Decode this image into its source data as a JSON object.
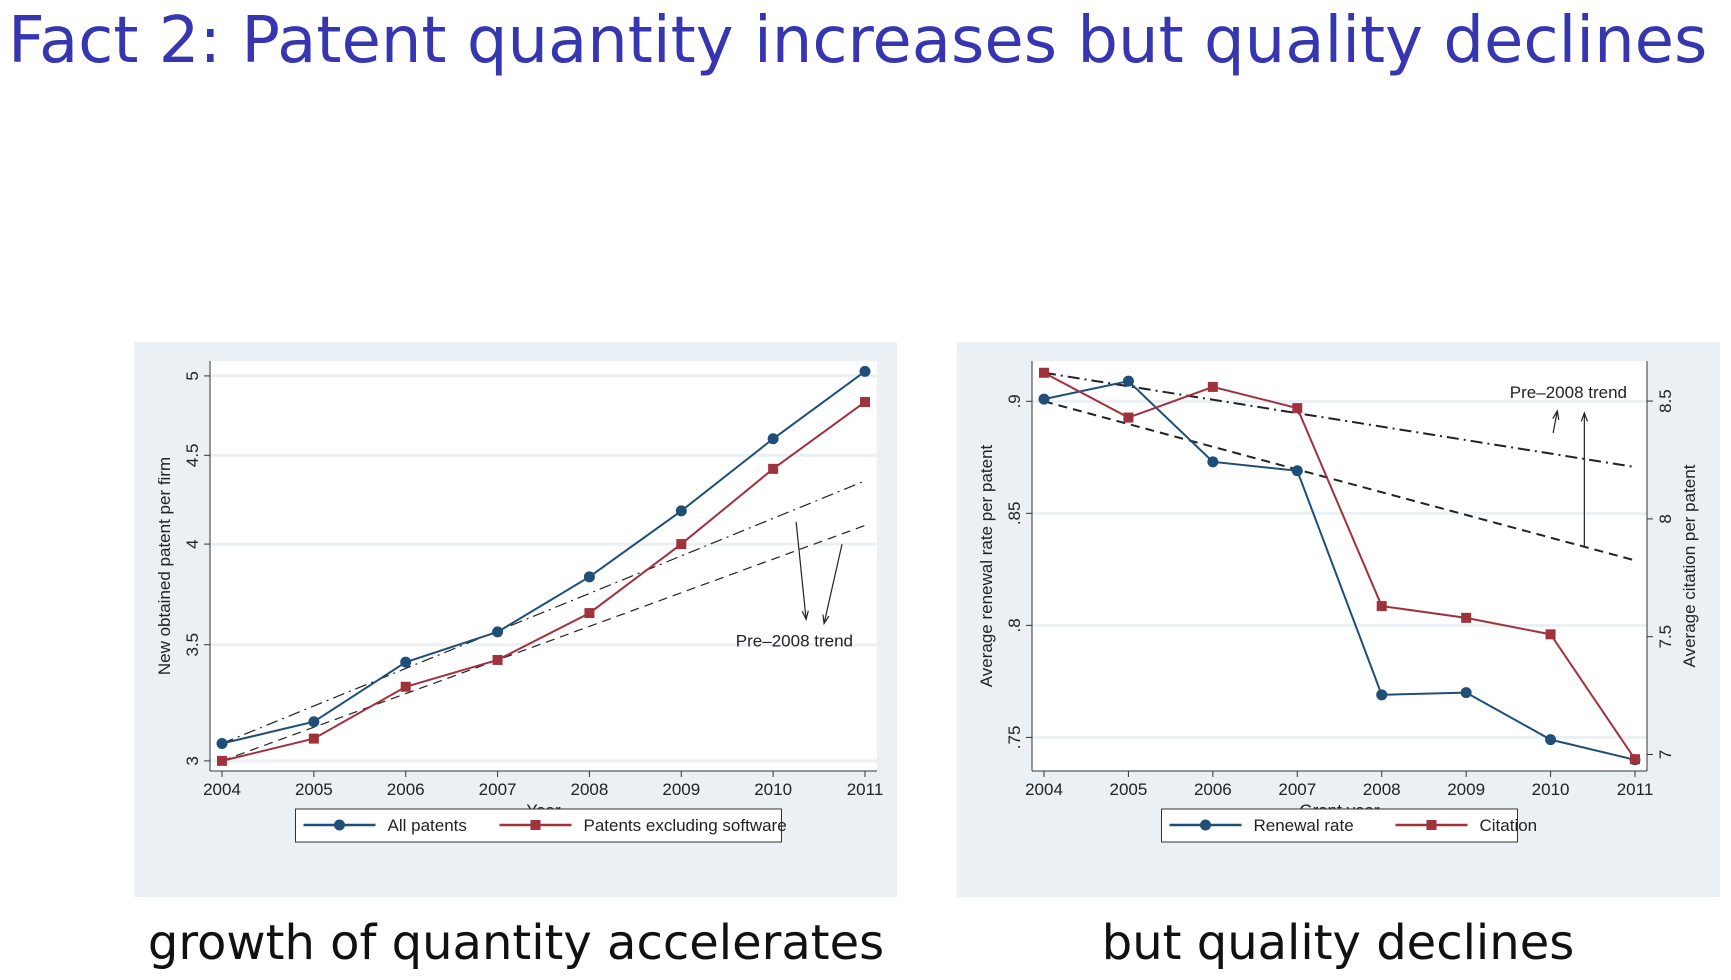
{
  "title": "Fact 2: Patent quantity increases but quality declines",
  "captions": [
    "growth of quantity accelerates",
    "but quality declines"
  ],
  "colors": {
    "blue": "#1f4e79",
    "red": "#a0323c",
    "title": "#3636b0"
  },
  "chart_data": [
    {
      "type": "line",
      "x": [
        2004,
        2005,
        2006,
        2007,
        2008,
        2009,
        2010,
        2011
      ],
      "xlabel": "Year",
      "ylabel": "New obtained patent per firm",
      "yscale": "log",
      "ylim": [
        2.96,
        5.1
      ],
      "yticks": [
        3,
        3.5,
        4,
        4.5,
        5
      ],
      "ytick_labels": [
        "3",
        "3.5",
        "4",
        "4.5",
        "5"
      ],
      "series": [
        {
          "name": "All patents",
          "marker": "circle",
          "values": [
            3.07,
            3.16,
            3.42,
            3.56,
            3.83,
            4.18,
            4.6,
            5.03
          ]
        },
        {
          "name": "Patents excluding software",
          "marker": "square",
          "values": [
            3.0,
            3.09,
            3.31,
            3.43,
            3.65,
            4.0,
            4.42,
            4.83
          ]
        }
      ],
      "trends": [
        {
          "style": "dashdot",
          "from": [
            2004,
            3.07
          ],
          "to": [
            2011,
            4.35
          ]
        },
        {
          "style": "dash",
          "from": [
            2004,
            3.0
          ],
          "to": [
            2011,
            4.1
          ]
        }
      ],
      "annotation": "Pre–2008 trend",
      "legend": "bottom"
    },
    {
      "type": "line",
      "x": [
        2004,
        2005,
        2006,
        2007,
        2008,
        2009,
        2010,
        2011
      ],
      "xlabel": "Grant year",
      "ylabel": "Average renewal rate per patent",
      "ylabel_right": "Average citation per patent",
      "ylim": [
        0.735,
        0.918
      ],
      "yticks": [
        0.75,
        0.8,
        0.85,
        0.9
      ],
      "ytick_labels": [
        ".75",
        ".8",
        ".85",
        ".9"
      ],
      "ylim_right": [
        6.93,
        8.67
      ],
      "yticks_right": [
        7,
        7.5,
        8,
        8.5
      ],
      "ytick_labels_right": [
        "7",
        "7.5",
        "8",
        "8.5"
      ],
      "series": [
        {
          "name": "Renewal rate",
          "axis": "left",
          "marker": "circle",
          "values": [
            0.901,
            0.909,
            0.873,
            0.869,
            0.769,
            0.77,
            0.749,
            0.74
          ]
        },
        {
          "name": "Citation",
          "axis": "right",
          "marker": "square",
          "values": [
            8.62,
            8.43,
            8.56,
            8.47,
            7.63,
            7.58,
            7.51,
            6.98
          ]
        }
      ],
      "trends": [
        {
          "style": "dash",
          "axis": "left",
          "from": [
            2004,
            0.9
          ],
          "to": [
            2011,
            0.829
          ]
        },
        {
          "style": "dashdot",
          "axis": "right",
          "from": [
            2004,
            8.62
          ],
          "to": [
            2011,
            8.22
          ]
        }
      ],
      "annotation": "Pre–2008 trend",
      "legend": "bottom"
    }
  ]
}
